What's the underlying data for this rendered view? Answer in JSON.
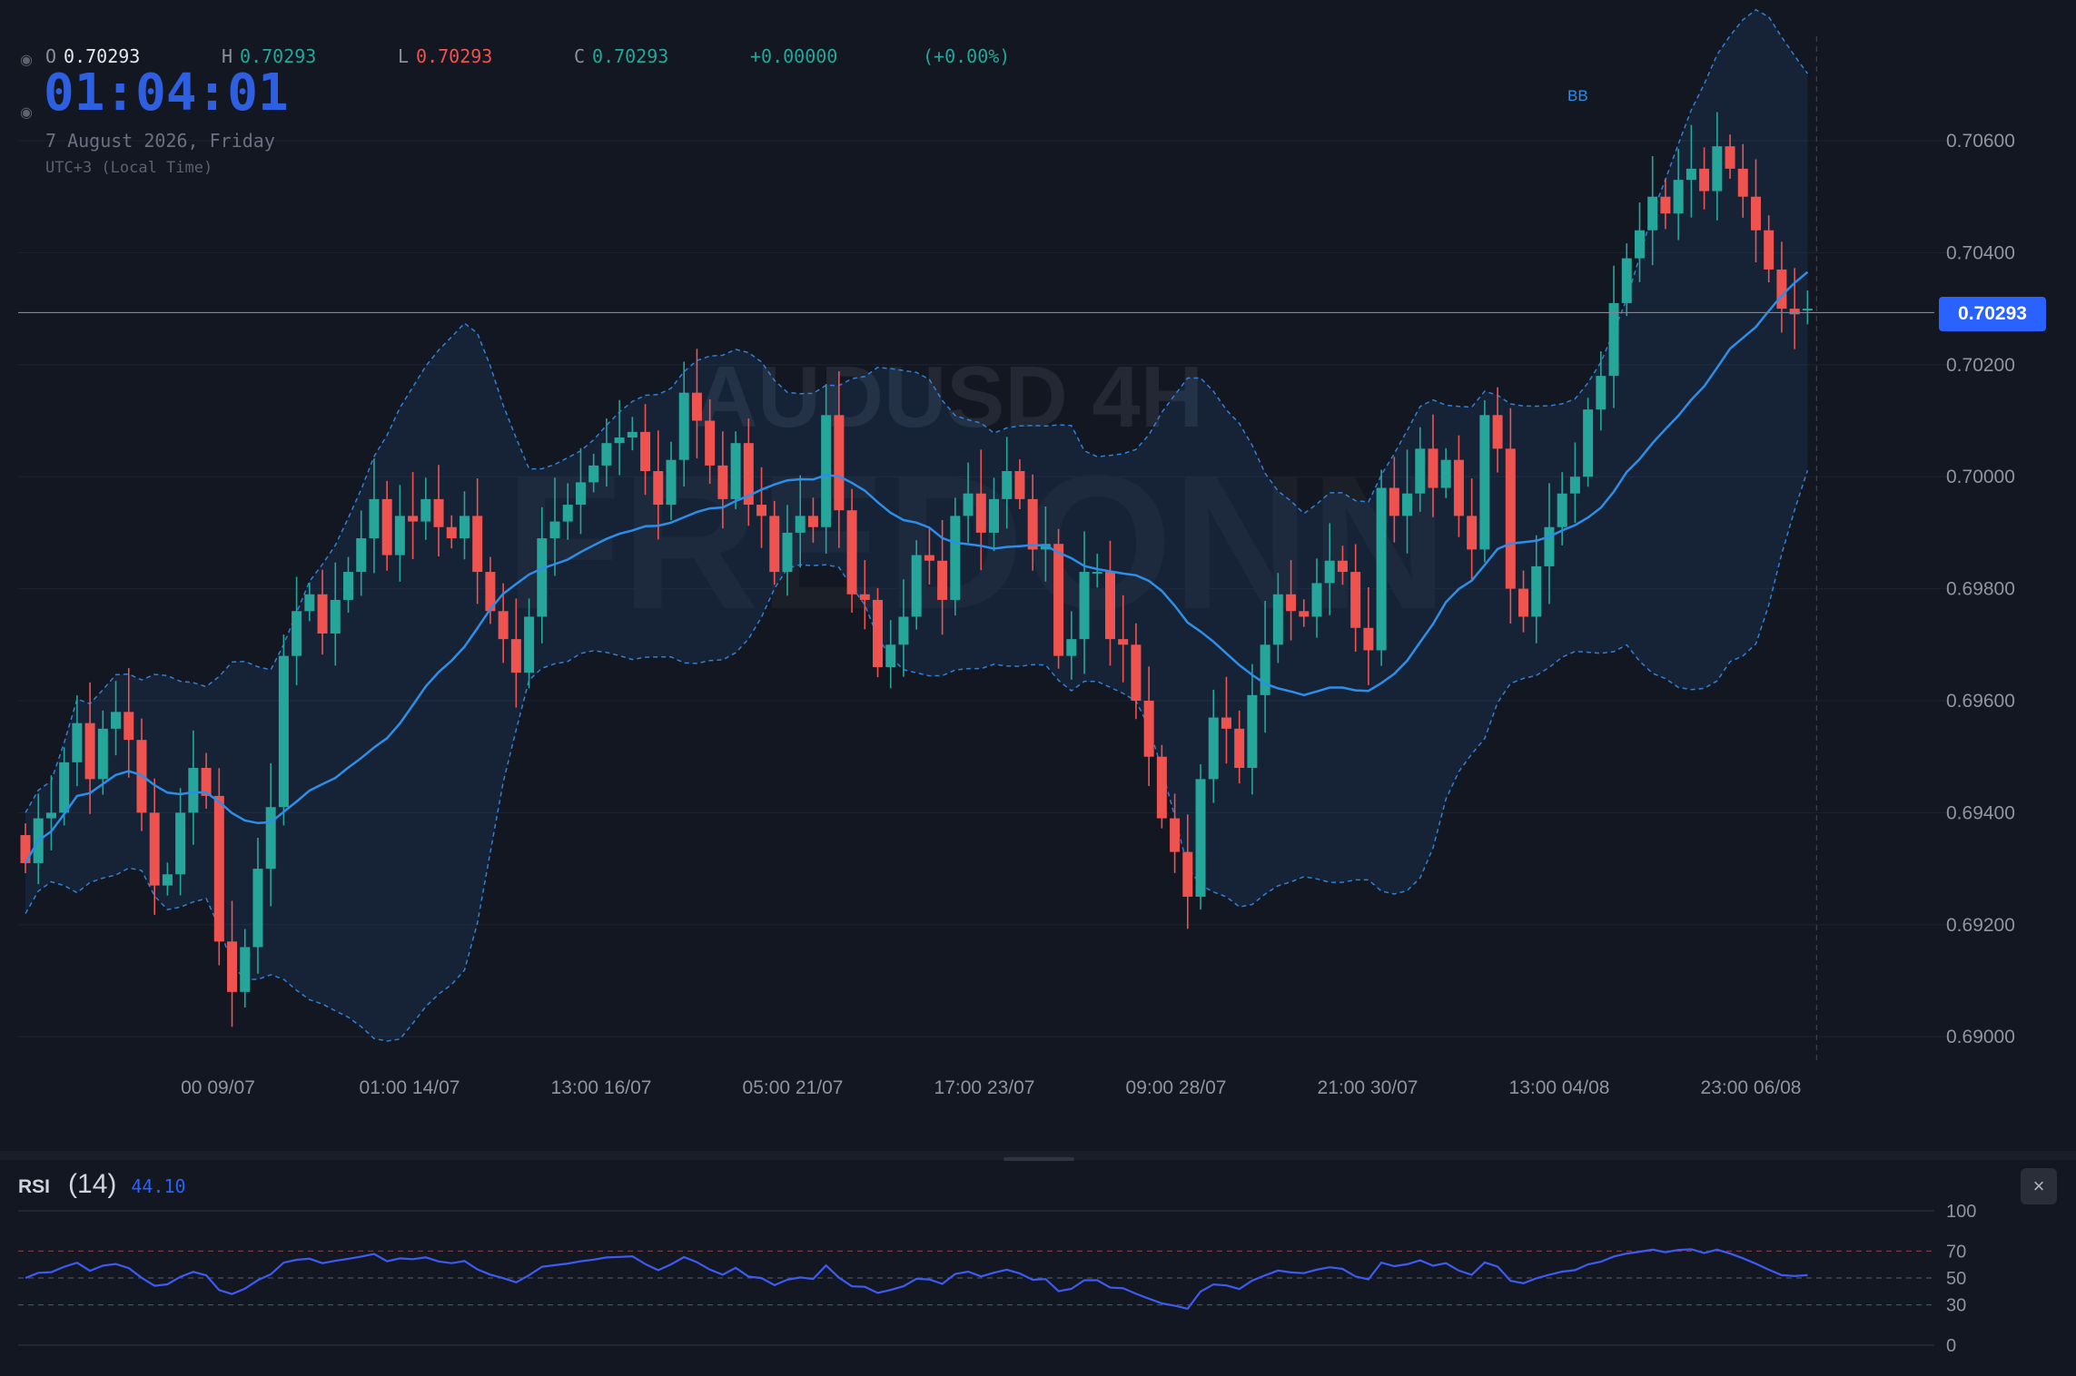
{
  "symbol_watermark": "AUDUSD 4H",
  "brand_watermark": "FREDONN",
  "legend": {
    "open_label": "O",
    "open_value": "0.70293",
    "high_label": "H",
    "high_value": "0.70293",
    "low_label": "L",
    "low_value": "0.70293",
    "close_label": "C",
    "close_value": "0.70293",
    "change": "+0.00000",
    "change_pct": "(+0.00%)"
  },
  "clock": "01:04:01",
  "date": "7 August 2026, Friday",
  "timezone": "UTC+3 (Local Time)",
  "bb_label": "BB",
  "last_price": "0.70293",
  "rsi": {
    "name": "RSI",
    "param": "(14)",
    "value": "44.10",
    "close_icon": "×"
  },
  "icons": {
    "legend_eye": "eye-icon",
    "clock_eye": "eye-icon",
    "close": "close-icon"
  },
  "colors": {
    "background": "#131722",
    "up": "#26a69a",
    "down": "#ef5350",
    "bb_mid": "#2d8ee8",
    "bb_band": "#2f7fd4",
    "rsi": "#3d5af1",
    "accent": "#2962ff"
  },
  "chart_data": {
    "type": "candlestick",
    "ylim": [
      0.6895,
      0.7075
    ],
    "y_ticks": [
      "0.70600",
      "0.70400",
      "0.70200",
      "0.70000",
      "0.69800",
      "0.69600",
      "0.69400",
      "0.69200",
      "0.69000"
    ],
    "x_ticks": [
      "00 09/07",
      "01:00 14/07",
      "13:00 16/07",
      "05:00 21/07",
      "17:00 23/07",
      "09:00 28/07",
      "21:00 30/07",
      "13:00 04/08",
      "23:00 06/08"
    ],
    "last_price": 0.70293,
    "close": [
      0.6931,
      0.6939,
      0.694,
      0.6949,
      0.6956,
      0.6946,
      0.6955,
      0.6958,
      0.6953,
      0.694,
      0.6927,
      0.6929,
      0.694,
      0.6948,
      0.6943,
      0.6917,
      0.6908,
      0.6916,
      0.693,
      0.6941,
      0.6968,
      0.6976,
      0.6979,
      0.6972,
      0.6978,
      0.6983,
      0.6989,
      0.6996,
      0.6986,
      0.6993,
      0.6992,
      0.6996,
      0.6991,
      0.6989,
      0.6993,
      0.6983,
      0.6976,
      0.6971,
      0.6965,
      0.6975,
      0.6989,
      0.6992,
      0.6995,
      0.6999,
      0.7002,
      0.7006,
      0.7007,
      0.7008,
      0.7001,
      0.6995,
      0.7003,
      0.7015,
      0.701,
      0.7002,
      0.6996,
      0.7006,
      0.6995,
      0.6993,
      0.6983,
      0.699,
      0.6993,
      0.6991,
      0.7011,
      0.6994,
      0.6979,
      0.6978,
      0.6966,
      0.697,
      0.6975,
      0.6986,
      0.6985,
      0.6978,
      0.6993,
      0.6997,
      0.699,
      0.6996,
      0.7001,
      0.6996,
      0.6987,
      0.6988,
      0.6968,
      0.6971,
      0.6983,
      0.6983,
      0.6971,
      0.697,
      0.696,
      0.695,
      0.6939,
      0.6933,
      0.6925,
      0.6946,
      0.6957,
      0.6955,
      0.6948,
      0.6961,
      0.697,
      0.6979,
      0.6976,
      0.6975,
      0.6981,
      0.6985,
      0.6983,
      0.6973,
      0.6969,
      0.6998,
      0.6993,
      0.6997,
      0.7005,
      0.6998,
      0.7003,
      0.6993,
      0.6987,
      0.7011,
      0.7005,
      0.698,
      0.6975,
      0.6984,
      0.6991,
      0.6997,
      0.7,
      0.7012,
      0.7018,
      0.7031,
      0.7039,
      0.7044,
      0.705,
      0.7047,
      0.7053,
      0.7055,
      0.7051,
      0.7059,
      0.7055,
      0.705,
      0.7044,
      0.7037,
      0.703,
      0.7029,
      0.703
    ]
  }
}
